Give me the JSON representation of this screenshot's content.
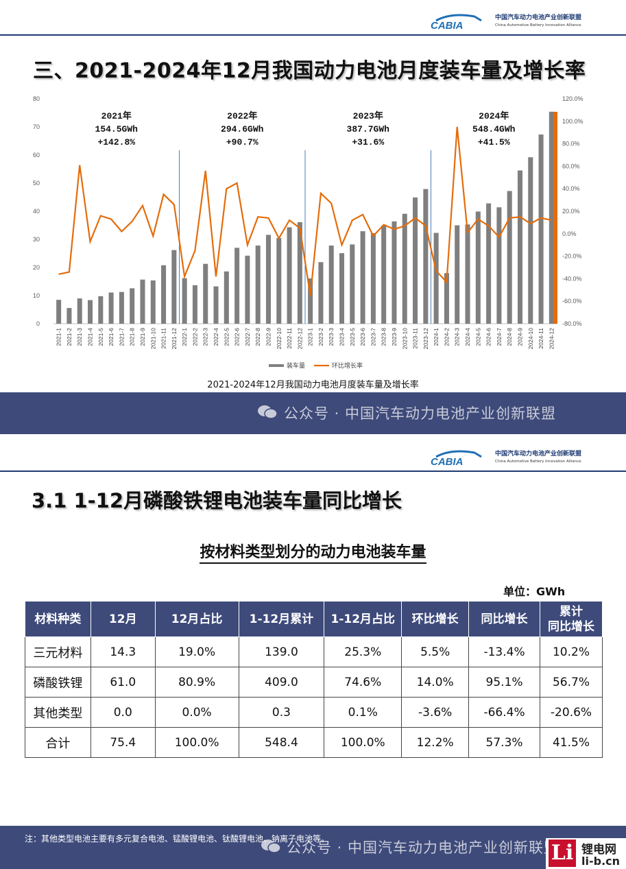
{
  "header": {
    "logo_text": "CABIA",
    "org_cn": "中国汽车动力电池产业创新联盟",
    "org_en": "China Automotive Battery Innovation Alliance"
  },
  "page1": {
    "title": "三、2021-2024年12月我国动力电池月度装车量及增长率",
    "caption": "2021-2024年12月我国动力电池月度装车量及增长率",
    "watermark": "公众号 · 中国汽车动力电池产业创新联盟"
  },
  "chart_data": {
    "type": "bar",
    "title": "2021-2024年12月我国动力电池月度装车量及增长率",
    "categories": [
      "2021-1",
      "2021-2",
      "2021-3",
      "2021-4",
      "2021-5",
      "2021-6",
      "2021-7",
      "2021-8",
      "2021-9",
      "2021-10",
      "2021-11",
      "2021-12",
      "2022-1",
      "2022-2",
      "2022-3",
      "2022-4",
      "2022-5",
      "2022-6",
      "2022-7",
      "2022-8",
      "2022-9",
      "2022-10",
      "2022-11",
      "2022-12",
      "2023-1",
      "2023-2",
      "2023-3",
      "2023-4",
      "2023-5",
      "2023-6",
      "2023-7",
      "2023-8",
      "2023-9",
      "2023-10",
      "2023-11",
      "2023-12",
      "2024-1",
      "2024-2",
      "2024-3",
      "2024-4",
      "2024-5",
      "2024-6",
      "2024-7",
      "2024-8",
      "2024-9",
      "2024-10",
      "2024-11",
      "2024-12"
    ],
    "series": [
      {
        "name": "装车量",
        "axis": "left",
        "color": "#7f7f7f",
        "values": [
          8.5,
          5.6,
          9.0,
          8.4,
          9.8,
          11.1,
          11.3,
          12.6,
          15.7,
          15.4,
          20.8,
          26.2,
          16.2,
          13.7,
          21.3,
          13.3,
          18.6,
          27.0,
          24.2,
          27.8,
          31.6,
          30.5,
          34.3,
          36.1,
          16.1,
          21.9,
          27.8,
          25.1,
          28.2,
          32.9,
          32.2,
          34.9,
          36.4,
          39.1,
          44.9,
          47.9,
          32.3,
          18.0,
          35.0,
          35.3,
          39.9,
          42.8,
          41.4,
          47.2,
          54.5,
          59.2,
          67.3,
          75.4
        ]
      },
      {
        "name": "环比增长率",
        "axis": "right",
        "color": "#e46c0a",
        "values": [
          -36,
          -34,
          61,
          -7,
          16,
          13,
          2,
          11,
          25,
          -2,
          35,
          26,
          -38,
          -15,
          56,
          -38,
          40,
          45,
          -10,
          15,
          14,
          -4,
          12,
          5,
          -55,
          36,
          27,
          -10,
          12,
          17,
          -2,
          8,
          4,
          7,
          14,
          7,
          -33,
          -43,
          95,
          1,
          13,
          7,
          -3,
          14,
          15,
          9,
          14,
          12
        ]
      }
    ],
    "y_left": {
      "min": 0,
      "max": 80,
      "ticks": [
        0,
        10,
        20,
        30,
        40,
        50,
        60,
        70,
        80
      ]
    },
    "y_right": {
      "min": -80,
      "max": 120,
      "ticks": [
        "-80.0%",
        "-60.0%",
        "-40.0%",
        "-20.0%",
        "0.0%",
        "20.0%",
        "40.0%",
        "60.0%",
        "80.0%",
        "100.0%",
        "120.0%"
      ]
    },
    "legend_position": "bottom",
    "annotations": [
      {
        "year": "2021年",
        "total": "154.5GWh",
        "growth": "+142.8%"
      },
      {
        "year": "2022年",
        "total": "294.6GWh",
        "growth": "+90.7%"
      },
      {
        "year": "2023年",
        "total": "387.7GWh",
        "growth": "+31.6%"
      },
      {
        "year": "2024年",
        "total": "548.4GWh",
        "growth": "+41.5%"
      }
    ]
  },
  "page2": {
    "title": "3.1  1-12月磷酸铁锂电池装车量同比增长",
    "subtitle": "按材料类型划分的动力电池装车量",
    "unit": "单位：GWh",
    "table": {
      "headers": [
        "材料种类",
        "12月",
        "12月占比",
        "1-12月累计",
        "1-12月占比",
        "环比增长",
        "同比增长",
        "累计\n同比增长"
      ],
      "rows": [
        [
          "三元材料",
          "14.3",
          "19.0%",
          "139.0",
          "25.3%",
          "5.5%",
          "-13.4%",
          "10.2%"
        ],
        [
          "磷酸铁锂",
          "61.0",
          "80.9%",
          "409.0",
          "74.6%",
          "14.0%",
          "95.1%",
          "56.7%"
        ],
        [
          "其他类型",
          "0.0",
          "0.0%",
          "0.3",
          "0.1%",
          "-3.6%",
          "-66.4%",
          "-20.6%"
        ],
        [
          "合计",
          "75.4",
          "100.0%",
          "548.4",
          "100.0%",
          "12.2%",
          "57.3%",
          "41.5%"
        ]
      ]
    },
    "note": "注：其他类型电池主要有多元复合电池、锰酸锂电池、钛酸锂电池、钠离子电池等。",
    "watermark": "公众号 · 中国汽车动力电池产业创新联盟"
  },
  "site_badge": {
    "mark": "Li",
    "name": "锂电网",
    "url": "li-b.cn"
  }
}
